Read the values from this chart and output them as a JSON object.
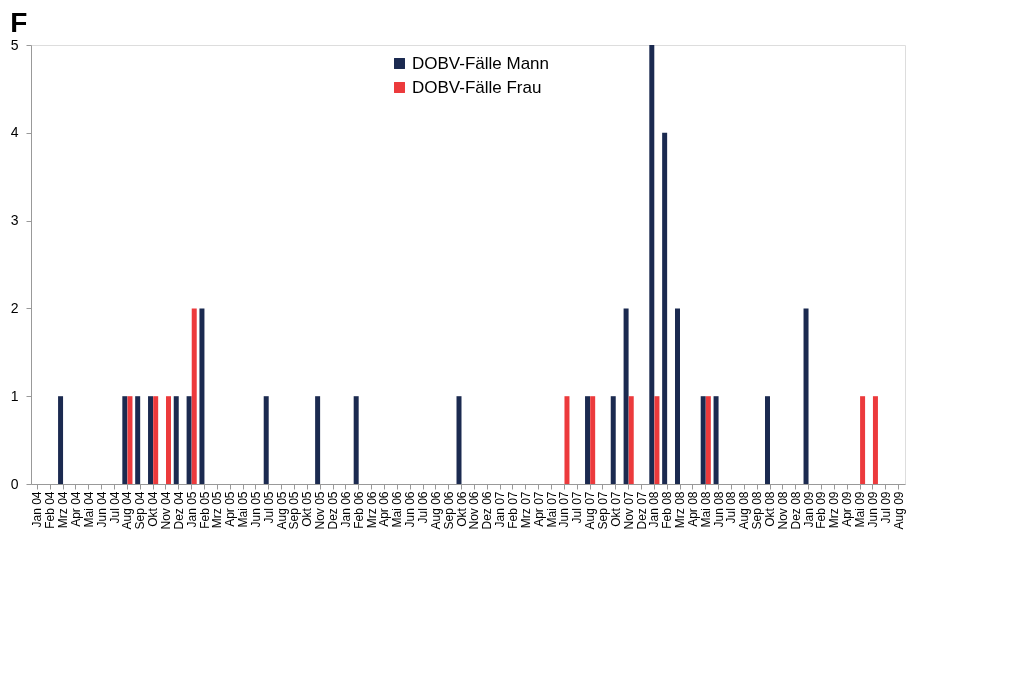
{
  "chart_data": {
    "type": "bar",
    "title": "F",
    "categories": [
      "Jan 04",
      "Feb 04",
      "Mrz 04",
      "Apr 04",
      "Mai 04",
      "Jun 04",
      "Jul 04",
      "Aug 04",
      "Sep 04",
      "Okt 04",
      "Nov 04",
      "Dez 04",
      "Jan 05",
      "Feb 05",
      "Mrz 05",
      "Apr 05",
      "Mai 05",
      "Jun 05",
      "Jul 05",
      "Aug 05",
      "Sep 05",
      "Okt 05",
      "Nov 05",
      "Dez 05",
      "Jan 06",
      "Feb 06",
      "Mrz 06",
      "Apr 06",
      "Mai 06",
      "Jun 06",
      "Jul 06",
      "Aug 06",
      "Sep 06",
      "Okt 06",
      "Nov 06",
      "Dez 06",
      "Jan 07",
      "Feb 07",
      "Mrz 07",
      "Apr 07",
      "Mai 07",
      "Jun 07",
      "Jul 07",
      "Aug 07",
      "Sep 07",
      "Okt 07",
      "Nov 07",
      "Dez 07",
      "Jan 08",
      "Feb 08",
      "Mrz 08",
      "Apr 08",
      "Mai 08",
      "Jun 08",
      "Jul 08",
      "Aug 08",
      "Sep 08",
      "Okt 08",
      "Nov 08",
      "Dez 08",
      "Jan 09",
      "Feb 09",
      "Mrz 09",
      "Apr 09",
      "Mai 09",
      "Jun 09",
      "Jul 09",
      "Aug 09"
    ],
    "series": [
      {
        "name": "DOBV-Fälle Mann",
        "color": "#1b2a50",
        "values": [
          0,
          0,
          1,
          0,
          0,
          0,
          0,
          1,
          1,
          1,
          0,
          1,
          1,
          2,
          0,
          0,
          0,
          0,
          1,
          0,
          0,
          0,
          1,
          0,
          0,
          1,
          0,
          0,
          0,
          0,
          0,
          0,
          0,
          1,
          0,
          0,
          0,
          0,
          0,
          0,
          0,
          0,
          0,
          1,
          0,
          1,
          2,
          0,
          5,
          4,
          2,
          0,
          1,
          1,
          0,
          0,
          0,
          1,
          0,
          0,
          2,
          0,
          0,
          0,
          0,
          0,
          0,
          0
        ]
      },
      {
        "name": "DOBV-Fälle Frau",
        "color": "#ec3a3c",
        "values": [
          0,
          0,
          0,
          0,
          0,
          0,
          0,
          1,
          0,
          1,
          1,
          0,
          2,
          0,
          0,
          0,
          0,
          0,
          0,
          0,
          0,
          0,
          0,
          0,
          0,
          0,
          0,
          0,
          0,
          0,
          0,
          0,
          0,
          0,
          0,
          0,
          0,
          0,
          0,
          0,
          0,
          1,
          0,
          1,
          0,
          0,
          1,
          0,
          1,
          0,
          0,
          0,
          1,
          0,
          0,
          0,
          0,
          0,
          0,
          0,
          0,
          0,
          0,
          0,
          1,
          1,
          0,
          0
        ]
      }
    ],
    "ylim": [
      0,
      5
    ],
    "yticks": [
      0,
      1,
      2,
      3,
      4,
      5
    ],
    "grid": false,
    "legend": "top"
  }
}
